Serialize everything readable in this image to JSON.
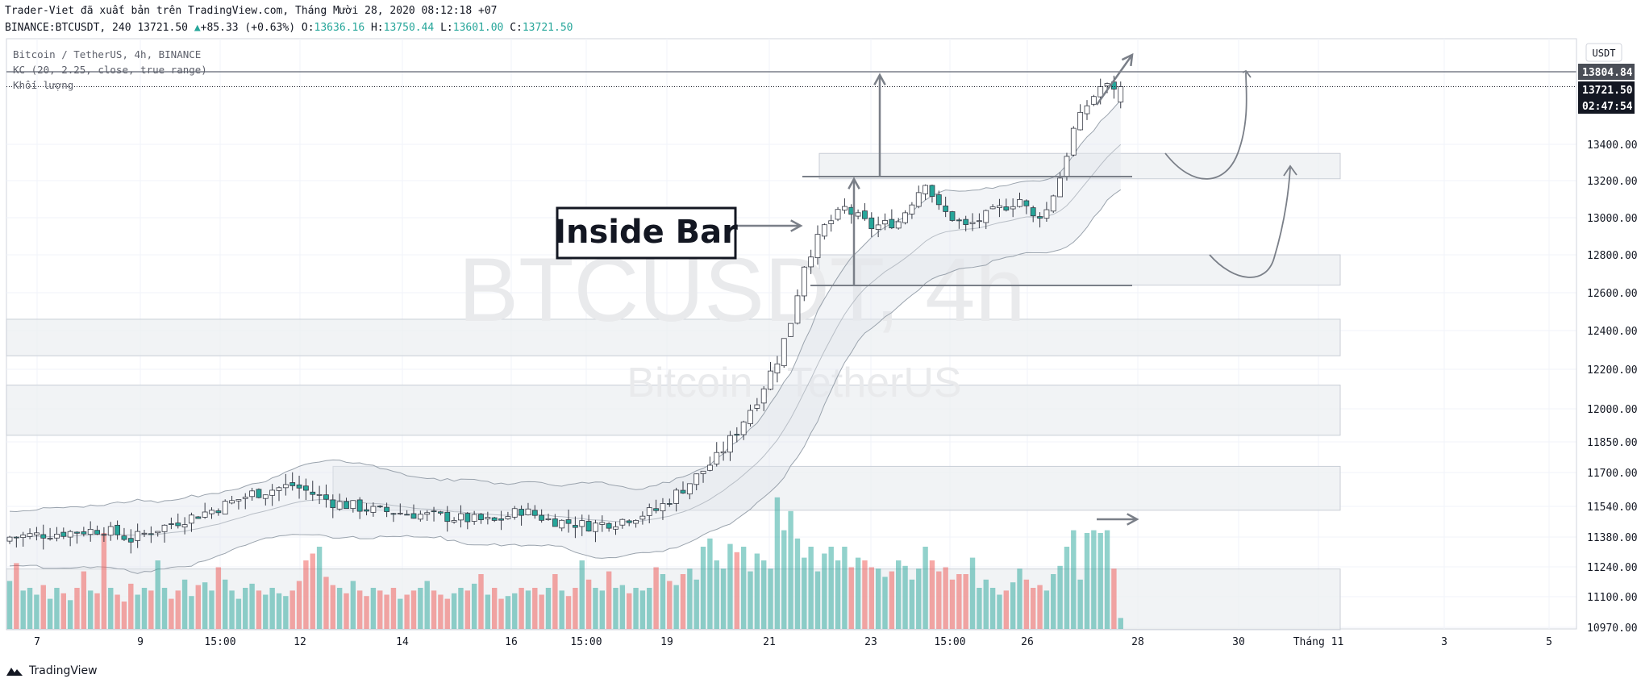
{
  "header": {
    "export_line": "Trader-Viet đã xuất bản trên TradingView.com, Tháng Mười 28, 2020 08:12:18 +07",
    "symbol_line": "BINANCE:BTCUSDT, 240 13721.50",
    "change": "+85.33 (+0.63%)",
    "ohlc": {
      "o_label": "O:",
      "o": "13636.16",
      "h_label": "H:",
      "h": "13750.44",
      "l_label": "L:",
      "l": "13601.00",
      "c_label": "C:",
      "c": "13721.50"
    }
  },
  "legend": {
    "series_title": "Bitcoin / TetherUS, 4h, BINANCE",
    "indicator": "KC (20, 2.25, close, true range)",
    "volume": "Khối lượng"
  },
  "price_axis": {
    "currency_button": "USDT",
    "resistance_label": "13804.84",
    "last_price_label": "13721.50",
    "countdown_label": "02:47:54",
    "ticks": [
      "13400.00",
      "13200.00",
      "13000.00",
      "12800.00",
      "12600.00",
      "12400.00",
      "12200.00",
      "12000.00",
      "11850.00",
      "11700.00",
      "11540.00",
      "11380.00",
      "11240.00",
      "11100.00",
      "10970.00"
    ]
  },
  "time_axis": {
    "ticks": [
      "7",
      "9",
      "15:00",
      "12",
      "14",
      "16",
      "15:00",
      "19",
      "21",
      "23",
      "15:00",
      "26",
      "28",
      "30",
      "Tháng 11",
      "3",
      "5"
    ]
  },
  "watermark": {
    "symbol": "BTCUSDT, 4h",
    "name": "Bitcoin / TetherUS"
  },
  "annotation": {
    "inside_bar": "Inside Bar"
  },
  "brand": {
    "name": "TradingView"
  },
  "colors": {
    "up": "#26a69a",
    "down": "#ef5350",
    "up_candle_body": "#ffffff",
    "down_candle_body": "#26a69a",
    "zone": "#eceff2"
  },
  "chart_data": {
    "type": "candlestick",
    "title": "Bitcoin / TetherUS, 4h, BINANCE",
    "xlabel": "",
    "ylabel": "USDT",
    "ylim": [
      10900,
      13900
    ],
    "period": "Oct 7 2020 – Oct 28 2020, 4h bars",
    "price_path": [
      [
        0,
        11380
      ],
      [
        14,
        11420
      ],
      [
        18,
        11370
      ],
      [
        24,
        11450
      ],
      [
        30,
        11520
      ],
      [
        36,
        11600
      ],
      [
        42,
        11640
      ],
      [
        48,
        11560
      ],
      [
        54,
        11520
      ],
      [
        60,
        11500
      ],
      [
        66,
        11480
      ],
      [
        72,
        11460
      ],
      [
        76,
        11520
      ],
      [
        80,
        11470
      ],
      [
        86,
        11440
      ],
      [
        90,
        11460
      ],
      [
        96,
        11520
      ],
      [
        99,
        11600
      ],
      [
        102,
        11680
      ],
      [
        105,
        11770
      ],
      [
        108,
        11900
      ],
      [
        111,
        12050
      ],
      [
        114,
        12250
      ],
      [
        116,
        12450
      ],
      [
        118,
        12750
      ],
      [
        121,
        12950
      ],
      [
        124,
        13050
      ],
      [
        128,
        12950
      ],
      [
        132,
        12980
      ],
      [
        136,
        13200
      ],
      [
        138,
        13050
      ],
      [
        142,
        12950
      ],
      [
        146,
        13030
      ],
      [
        150,
        13100
      ],
      [
        152,
        13000
      ],
      [
        154,
        13040
      ],
      [
        156,
        13220
      ],
      [
        158,
        13480
      ],
      [
        160,
        13620
      ],
      [
        162,
        13721.5
      ]
    ],
    "last_bar": {
      "open": 13636.16,
      "high": 13750.44,
      "low": 13601.0,
      "close": 13721.5
    },
    "horizontal_levels": [
      13804.84
    ],
    "zones": [
      [
        13210,
        13350
      ],
      [
        12640,
        12800
      ],
      [
        12270,
        12460
      ],
      [
        11880,
        12120
      ],
      [
        11520,
        11730
      ],
      [
        10960,
        11230
      ]
    ],
    "volume_relative": [
      0.35,
      0.48,
      0.28,
      0.3,
      0.25,
      0.32,
      0.22,
      0.3,
      0.26,
      0.21,
      0.3,
      0.42,
      0.28,
      0.26,
      0.7,
      0.3,
      0.25,
      0.2,
      0.33,
      0.25,
      0.3,
      0.28,
      0.5,
      0.3,
      0.22,
      0.28,
      0.36,
      0.24,
      0.32,
      0.34,
      0.28,
      0.45,
      0.36,
      0.28,
      0.22,
      0.3,
      0.33,
      0.28,
      0.25,
      0.3,
      0.26,
      0.24,
      0.28,
      0.35,
      0.5,
      0.55,
      0.6,
      0.38,
      0.32,
      0.3,
      0.26,
      0.35,
      0.28,
      0.24,
      0.3,
      0.28,
      0.25,
      0.3,
      0.22,
      0.25,
      0.28,
      0.3,
      0.35,
      0.28,
      0.25,
      0.22,
      0.26,
      0.3,
      0.28,
      0.33,
      0.4,
      0.25,
      0.3,
      0.22,
      0.24,
      0.26,
      0.3,
      0.28,
      0.3,
      0.25,
      0.3,
      0.4,
      0.28,
      0.24,
      0.3,
      0.5,
      0.36,
      0.3,
      0.28,
      0.42,
      0.3,
      0.32,
      0.26,
      0.3,
      0.28,
      0.3,
      0.45,
      0.4,
      0.35,
      0.32,
      0.4,
      0.44,
      0.36,
      0.6,
      0.66,
      0.5,
      0.44,
      0.62,
      0.56,
      0.6,
      0.42,
      0.55,
      0.5,
      0.44,
      0.96,
      0.72,
      0.86,
      0.66,
      0.52,
      0.6,
      0.42,
      0.55,
      0.6,
      0.5,
      0.6,
      0.45,
      0.52,
      0.5,
      0.45,
      0.44,
      0.38,
      0.42,
      0.5,
      0.46,
      0.36,
      0.44,
      0.6,
      0.5,
      0.42,
      0.45,
      0.36,
      0.4,
      0.4,
      0.52,
      0.3,
      0.36,
      0.3,
      0.25,
      0.28,
      0.34,
      0.44,
      0.36,
      0.3,
      0.32,
      0.28,
      0.4,
      0.46,
      0.6,
      0.72,
      0.36,
      0.7,
      0.72,
      0.7,
      0.72,
      0.44,
      0.08
    ]
  }
}
